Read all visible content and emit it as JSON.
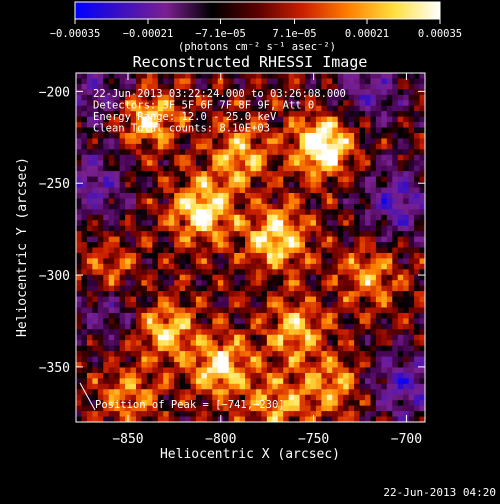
{
  "chart_data": {
    "type": "heatmap",
    "title": "Reconstructed RHESSI Image",
    "xlabel": "Heliocentric X (arcsec)",
    "ylabel": "Heliocentric Y (arcsec)",
    "xlim": [
      -878,
      -690
    ],
    "ylim": [
      -380,
      -190
    ],
    "xticks": [
      -850,
      -800,
      -750,
      -700
    ],
    "xtick_labels": [
      "−850",
      "−800",
      "−750",
      "−700"
    ],
    "yticks": [
      -200,
      -250,
      -300,
      -350
    ],
    "ytick_labels": [
      "−200",
      "−250",
      "−300",
      "−350"
    ],
    "colorbar": {
      "min": -0.00035,
      "max": 0.00035,
      "ticks": [
        -0.00035,
        -0.00021,
        -7.1e-05,
        7.1e-05,
        0.00021,
        0.00035
      ],
      "tick_labels": [
        "−0.00035",
        "−0.00021",
        "−7.1e−05",
        "7.1e−05",
        "0.00021",
        "0.00035"
      ],
      "units": "(photons cm⁻² s⁻¹ asec⁻²)",
      "colors": [
        "#0000ff",
        "#3b10c0",
        "#7a2090",
        "#000000",
        "#5a0000",
        "#cc2000",
        "#ff8000",
        "#ffe040",
        "#ffffff"
      ]
    },
    "annotations": [
      "22-Jun-2013 03:22:24.000 to 03:26:08.000",
      "Detectors: 3F 5F 6F 7F 8F 9F, Att 0",
      "Energy Range: 12.0 - 25.0 keV",
      "Clean    Total counts: 8.10E+03"
    ],
    "peak_label": "Position of Peak = [−741,−230]",
    "peak": {
      "x": -741,
      "y": -230
    },
    "bright_regions": [
      {
        "x": -745,
        "y": -230,
        "level": 1.0
      },
      {
        "x": -810,
        "y": -265,
        "level": 0.85
      },
      {
        "x": -770,
        "y": -280,
        "level": 0.8
      },
      {
        "x": -840,
        "y": -215,
        "level": 0.7
      },
      {
        "x": -790,
        "y": -235,
        "level": 0.6
      },
      {
        "x": -860,
        "y": -300,
        "level": 0.55
      },
      {
        "x": -800,
        "y": -350,
        "level": 0.75
      },
      {
        "x": -830,
        "y": -330,
        "level": 0.65
      },
      {
        "x": -760,
        "y": -330,
        "level": 0.6
      },
      {
        "x": -740,
        "y": -360,
        "level": 0.55
      },
      {
        "x": -720,
        "y": -300,
        "level": 0.5
      },
      {
        "x": -850,
        "y": -365,
        "level": 0.45
      },
      {
        "x": -770,
        "y": -370,
        "level": 0.5
      }
    ],
    "negative_regions": [
      {
        "x": -705,
        "y": -260,
        "level": -0.7
      },
      {
        "x": -700,
        "y": -360,
        "level": -0.7
      },
      {
        "x": -870,
        "y": -250,
        "level": -0.6
      },
      {
        "x": -860,
        "y": -315,
        "level": -0.55
      },
      {
        "x": -720,
        "y": -200,
        "level": -0.55
      },
      {
        "x": -865,
        "y": -200,
        "level": -0.5
      }
    ]
  },
  "footer": {
    "date": "22-Jun-2013 04:20"
  }
}
